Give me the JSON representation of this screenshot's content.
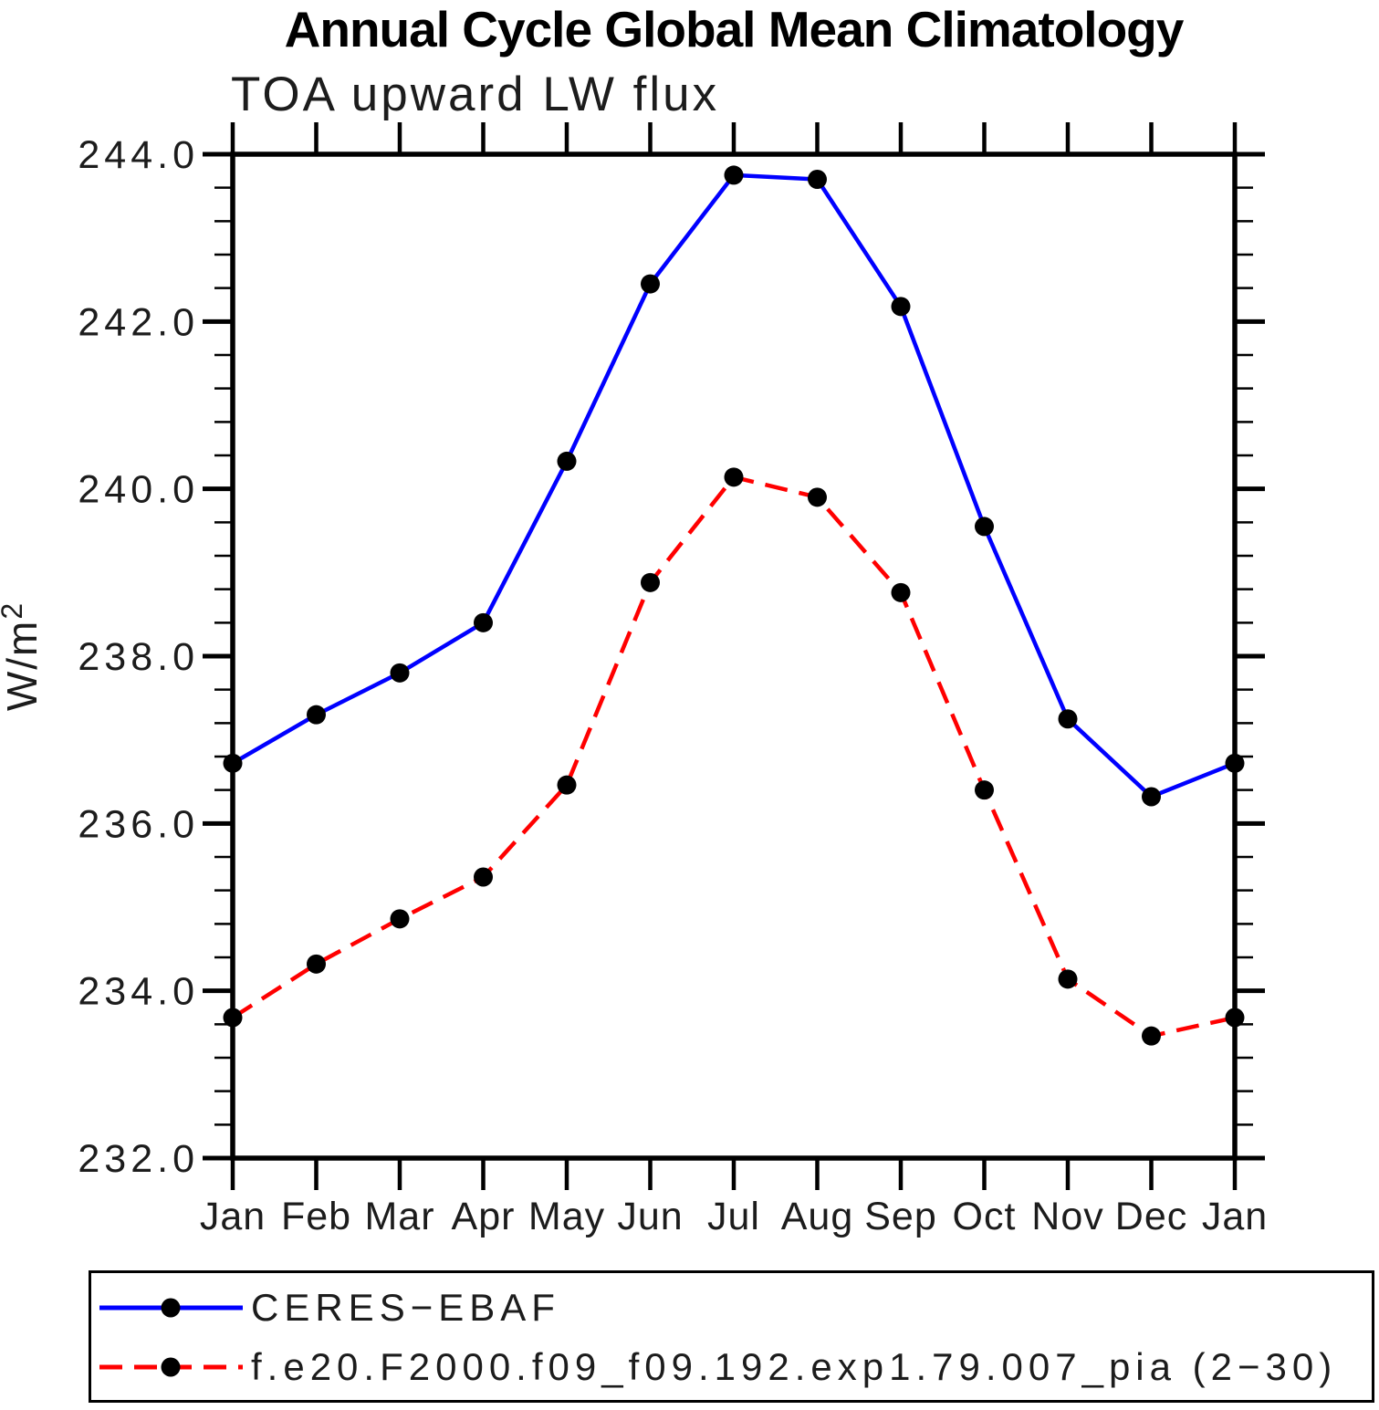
{
  "page": {
    "title": "Annual Cycle Global Mean Climatology"
  },
  "chart_data": {
    "type": "line",
    "title": "Annual Cycle Global Mean Climatology",
    "subtitle": "TOA upward LW flux",
    "ylabel": "W/m",
    "ylabel_exponent": "2",
    "categories": [
      "Jan",
      "Feb",
      "Mar",
      "Apr",
      "May",
      "Jun",
      "Jul",
      "Aug",
      "Sep",
      "Oct",
      "Nov",
      "Dec",
      "Jan"
    ],
    "ylim": [
      232.0,
      244.0
    ],
    "ytick_step": 2.0,
    "ytick_minor_step": 0.4,
    "ytick_labels": [
      "232.0",
      "234.0",
      "236.0",
      "238.0",
      "240.0",
      "242.0",
      "244.0"
    ],
    "grid": false,
    "legend_position": "bottom-left-box",
    "series": [
      {
        "name": "CERES−EBAF",
        "color": "#0000ff",
        "line_style": "solid",
        "marker": "filled-circle",
        "marker_color": "#000000",
        "values": [
          236.72,
          237.3,
          237.8,
          238.4,
          240.33,
          242.45,
          243.75,
          243.7,
          242.18,
          239.55,
          237.25,
          236.32,
          236.72
        ]
      },
      {
        "name": "f.e20.F2000.f09_f09.192.exp1.79.007_pia (2−30)",
        "color": "#ff0000",
        "line_style": "dashed",
        "marker": "filled-circle",
        "marker_color": "#000000",
        "values": [
          233.68,
          234.32,
          234.86,
          235.36,
          236.46,
          238.88,
          240.14,
          239.9,
          238.76,
          236.4,
          234.14,
          233.46,
          233.68
        ]
      }
    ]
  }
}
